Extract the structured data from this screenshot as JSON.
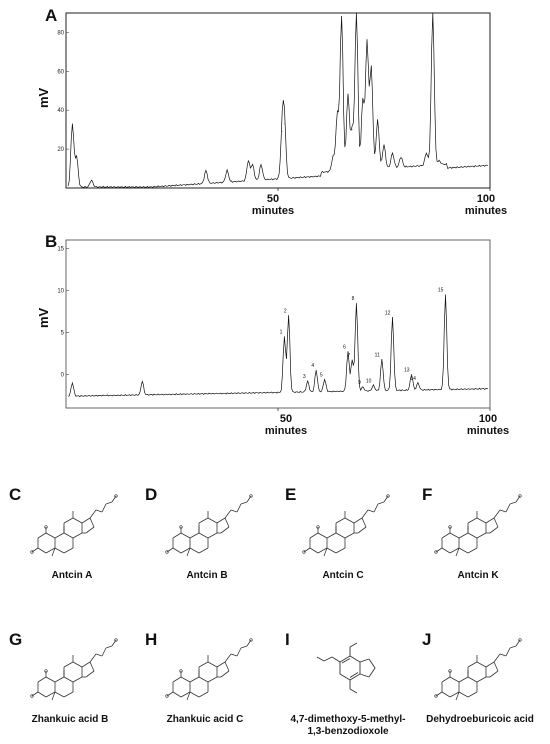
{
  "panels": {
    "A": "A",
    "B": "B",
    "C": "C",
    "D": "D",
    "E": "E",
    "F": "F",
    "G": "G",
    "H": "H",
    "I": "I",
    "J": "J"
  },
  "chart_data": [
    {
      "type": "line",
      "panel": "A",
      "ylabel": "mV",
      "xlabel": "minutes",
      "xlim": [
        0,
        100
      ],
      "ylim": [
        0,
        90
      ],
      "x_ticks": [
        50,
        100
      ],
      "y_ticks": [
        20,
        40,
        60,
        80
      ],
      "y_ticks_labels": [
        "20",
        "40",
        "60",
        "80"
      ],
      "tick_labels": [
        "50\nminutes",
        "100\nminutes"
      ],
      "peaks": [
        {
          "x": 1.5,
          "y": 33
        },
        {
          "x": 2.5,
          "y": 16
        },
        {
          "x": 6,
          "y": 4
        },
        {
          "x": 33,
          "y": 9
        },
        {
          "x": 38,
          "y": 9
        },
        {
          "x": 43,
          "y": 14
        },
        {
          "x": 44,
          "y": 12
        },
        {
          "x": 46,
          "y": 12
        },
        {
          "x": 51,
          "y": 29
        },
        {
          "x": 51.5,
          "y": 33
        },
        {
          "x": 63,
          "y": 16
        },
        {
          "x": 64,
          "y": 38
        },
        {
          "x": 65,
          "y": 88
        },
        {
          "x": 66.5,
          "y": 48
        },
        {
          "x": 67.5,
          "y": 30
        },
        {
          "x": 68.5,
          "y": 90
        },
        {
          "x": 70,
          "y": 45
        },
        {
          "x": 71,
          "y": 75
        },
        {
          "x": 72,
          "y": 62
        },
        {
          "x": 73.5,
          "y": 35
        },
        {
          "x": 75,
          "y": 22
        },
        {
          "x": 77,
          "y": 18
        },
        {
          "x": 79,
          "y": 16
        },
        {
          "x": 85,
          "y": 18
        },
        {
          "x": 86.5,
          "y": 90
        },
        {
          "x": 88,
          "y": 14
        }
      ]
    },
    {
      "type": "line",
      "panel": "B",
      "ylabel": "mV",
      "xlabel": "minutes",
      "xlim": [
        0,
        100
      ],
      "ylim": [
        -4,
        16
      ],
      "x_ticks": [
        50,
        100
      ],
      "y_ticks": [
        0,
        5,
        10,
        15
      ],
      "y_ticks_labels": [
        "0",
        "5",
        "10",
        "15"
      ],
      "tick_labels": [
        "50\nminutes",
        "100\nminutes"
      ],
      "peaks": [
        {
          "x": 1.5,
          "y": -1.0,
          "label": ""
        },
        {
          "x": 18,
          "y": -0.8,
          "label": ""
        },
        {
          "x": 51.5,
          "y": 4.5,
          "label": "1"
        },
        {
          "x": 52.5,
          "y": 7.0,
          "label": "2"
        },
        {
          "x": 57,
          "y": -0.8,
          "label": "3"
        },
        {
          "x": 59,
          "y": 0.5,
          "label": "4"
        },
        {
          "x": 61,
          "y": -0.6,
          "label": "5"
        },
        {
          "x": 66.5,
          "y": 2.7,
          "label": "6"
        },
        {
          "x": 67.5,
          "y": 1.7,
          "label": "7"
        },
        {
          "x": 68.5,
          "y": 8.5,
          "label": "8"
        },
        {
          "x": 70,
          "y": -1.5,
          "label": "9"
        },
        {
          "x": 72.5,
          "y": -1.3,
          "label": "10"
        },
        {
          "x": 74.5,
          "y": 1.8,
          "label": "11"
        },
        {
          "x": 77,
          "y": 6.8,
          "label": "12"
        },
        {
          "x": 81.5,
          "y": 0,
          "label": "13"
        },
        {
          "x": 83,
          "y": -1.0,
          "label": "14"
        },
        {
          "x": 89.5,
          "y": 9.5,
          "label": "15"
        }
      ]
    }
  ],
  "compounds": {
    "C": "Antcin A",
    "D": "Antcin B",
    "E": "Antcin C",
    "F": "Antcin K",
    "G": "Zhankuic acid B",
    "H": "Zhankuic acid C",
    "I": "4,7-dimethoxy-5-methyl-\n1,3-benzodioxole",
    "J": "Dehydroeburicoic acid"
  }
}
